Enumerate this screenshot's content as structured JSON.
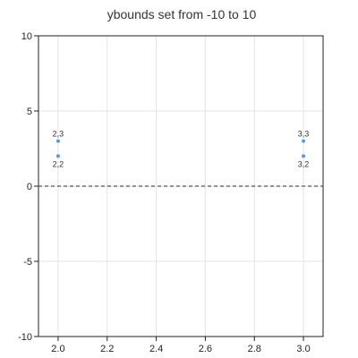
{
  "chart_data": {
    "type": "scatter",
    "title": "ybounds set from -10 to 10",
    "xlabel": "",
    "ylabel": "",
    "xlim": [
      1.92,
      3.08
    ],
    "ylim": [
      -10,
      10
    ],
    "x_ticks": [
      2.0,
      2.2,
      2.4,
      2.6,
      2.8,
      3.0
    ],
    "x_tick_labels": [
      "2.0",
      "2.2",
      "2.4",
      "2.6",
      "2.8",
      "3.0"
    ],
    "y_ticks": [
      10,
      5,
      0,
      -5,
      -10
    ],
    "y_tick_labels": [
      "10",
      "5",
      "0",
      "-5",
      "-10"
    ],
    "grid": true,
    "reference_line": {
      "y": 0,
      "style": "dashed"
    },
    "series": [
      {
        "points": [
          {
            "x": 2,
            "y": 3,
            "label": "2,3",
            "label_pos": "above"
          },
          {
            "x": 2,
            "y": 2,
            "label": "2,2",
            "label_pos": "below"
          },
          {
            "x": 3,
            "y": 3,
            "label": "3,3",
            "label_pos": "above"
          },
          {
            "x": 3,
            "y": 2,
            "label": "3,2",
            "label_pos": "below"
          }
        ]
      }
    ],
    "colors": {
      "point": "#5b9bd5",
      "grid": "#e3e3e3",
      "axis": "#222222",
      "reference_line": "#555555"
    }
  }
}
